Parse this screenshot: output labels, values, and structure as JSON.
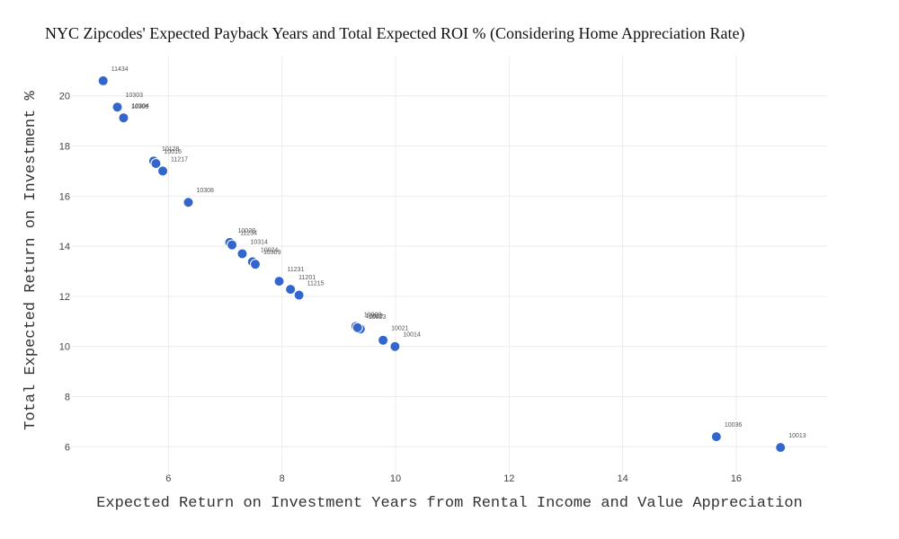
{
  "chart_data": {
    "type": "scatter",
    "title": "NYC Zipcodes' Expected Payback Years and Total Expected ROI % (Considering Home Appreciation Rate)",
    "xlabel": "Expected Return on Investment Years from Rental Income and Value Appreciation",
    "ylabel": "Total Expected Return on Investment %",
    "xlim": [
      4.3,
      17.6
    ],
    "ylim": [
      4.9,
      21.6
    ],
    "x_ticks": [
      6,
      8,
      10,
      12,
      14,
      16
    ],
    "y_ticks": [
      6,
      8,
      10,
      12,
      14,
      16,
      18,
      20
    ],
    "grid": true,
    "marker_color": "#3366cc",
    "points": [
      {
        "label": "11434",
        "x": 4.85,
        "y": 20.6
      },
      {
        "label": "10303",
        "x": 5.1,
        "y": 19.55
      },
      {
        "label": "10306",
        "x": 5.2,
        "y": 19.1
      },
      {
        "label": "10304",
        "x": 5.21,
        "y": 19.12
      },
      {
        "label": "10128",
        "x": 5.74,
        "y": 17.4
      },
      {
        "label": "10016",
        "x": 5.78,
        "y": 17.3
      },
      {
        "label": "11217",
        "x": 5.9,
        "y": 17.0
      },
      {
        "label": "10308",
        "x": 6.35,
        "y": 15.75
      },
      {
        "label": "10028",
        "x": 7.08,
        "y": 14.15
      },
      {
        "label": "11234",
        "x": 7.12,
        "y": 14.05
      },
      {
        "label": "10314",
        "x": 7.3,
        "y": 13.7
      },
      {
        "label": "10024",
        "x": 7.48,
        "y": 13.38
      },
      {
        "label": "10309",
        "x": 7.53,
        "y": 13.28
      },
      {
        "label": "11231",
        "x": 7.95,
        "y": 12.6
      },
      {
        "label": "11201",
        "x": 8.15,
        "y": 12.28
      },
      {
        "label": "11215",
        "x": 8.3,
        "y": 12.05
      },
      {
        "label": "10003",
        "x": 9.3,
        "y": 10.8
      },
      {
        "label": "10023",
        "x": 9.38,
        "y": 10.7
      },
      {
        "label": "10022",
        "x": 9.33,
        "y": 10.75
      },
      {
        "label": "10021",
        "x": 9.78,
        "y": 10.25
      },
      {
        "label": "10014",
        "x": 9.99,
        "y": 10.0
      },
      {
        "label": "10036",
        "x": 15.65,
        "y": 6.4
      },
      {
        "label": "10013",
        "x": 16.78,
        "y": 5.97
      }
    ]
  }
}
